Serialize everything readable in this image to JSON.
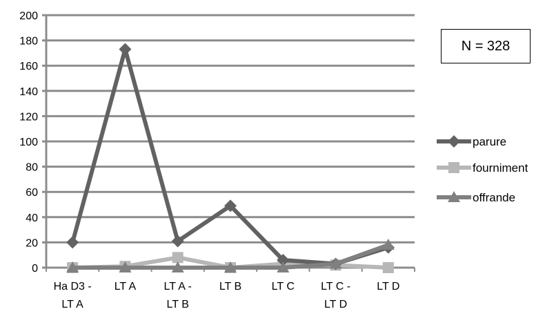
{
  "annotation": "N = 328",
  "colors": {
    "grid": "#8c8c8c",
    "parure": "#626262",
    "fourniment": "#b7b7b7",
    "offrande": "#808080"
  },
  "chart_data": {
    "type": "line",
    "title": "",
    "xlabel": "",
    "ylabel": "",
    "categories": [
      [
        "Ha D3 -",
        "LT A"
      ],
      [
        "LT A"
      ],
      [
        "LT A -",
        "LT B"
      ],
      [
        "LT B"
      ],
      [
        "LT C"
      ],
      [
        "LT C -",
        "LT D"
      ],
      [
        "LT D"
      ]
    ],
    "ylim": [
      0,
      200
    ],
    "yticks": [
      0,
      20,
      40,
      60,
      80,
      100,
      120,
      140,
      160,
      180,
      200
    ],
    "grid": true,
    "legend": "right",
    "series": [
      {
        "name": "parure",
        "marker": "diamond",
        "color": "#626262",
        "values": [
          20,
          173,
          21,
          49,
          6,
          3,
          16
        ]
      },
      {
        "name": "fourniment",
        "marker": "square",
        "color": "#b7b7b7",
        "values": [
          0,
          1,
          8,
          0,
          3,
          2,
          0
        ]
      },
      {
        "name": "offrande",
        "marker": "triangle",
        "color": "#808080",
        "values": [
          0,
          0,
          0,
          0,
          0,
          3,
          18
        ]
      }
    ]
  }
}
